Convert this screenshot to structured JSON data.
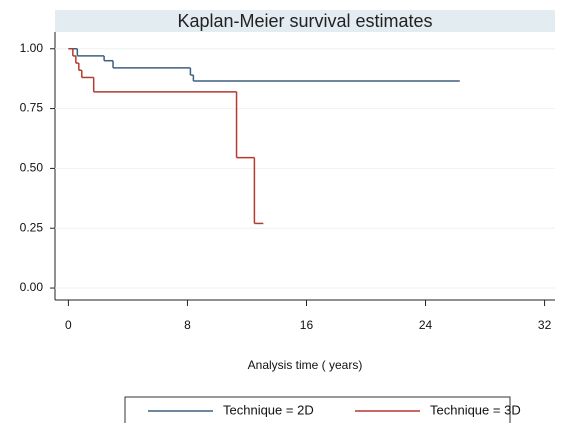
{
  "chart_data": {
    "type": "step",
    "title": "Kaplan-Meier survival estimates",
    "x_label": "Analysis time ( years)",
    "xlim": [
      -0.9,
      32.7
    ],
    "ylim": [
      -0.05,
      1.07
    ],
    "xticks": [
      0,
      8,
      16,
      24,
      32
    ],
    "yticks": [
      {
        "value": 0,
        "label": "0.00"
      },
      {
        "value": 0.25,
        "label": "0.25"
      },
      {
        "value": 0.5,
        "label": "0.50"
      },
      {
        "value": 0.75,
        "label": "0.75"
      },
      {
        "value": 1,
        "label": "1.00"
      }
    ],
    "grid": true,
    "legend": "bottom",
    "series": [
      {
        "name": "Technique = 2D",
        "color": "#3e5f80",
        "x": [
          0,
          0.6,
          2.4,
          3.0,
          8.2,
          8.4,
          26.3
        ],
        "values": [
          1,
          0.97,
          0.95,
          0.92,
          0.89,
          0.865,
          0.865
        ]
      },
      {
        "name": "Technique = 3D",
        "color": "#b5392e",
        "x": [
          0,
          0.3,
          0.5,
          0.7,
          0.9,
          1.7,
          11.3,
          12.5,
          13.1
        ],
        "values": [
          1,
          0.97,
          0.94,
          0.91,
          0.88,
          0.82,
          0.545,
          0.27,
          0.27
        ]
      }
    ]
  }
}
